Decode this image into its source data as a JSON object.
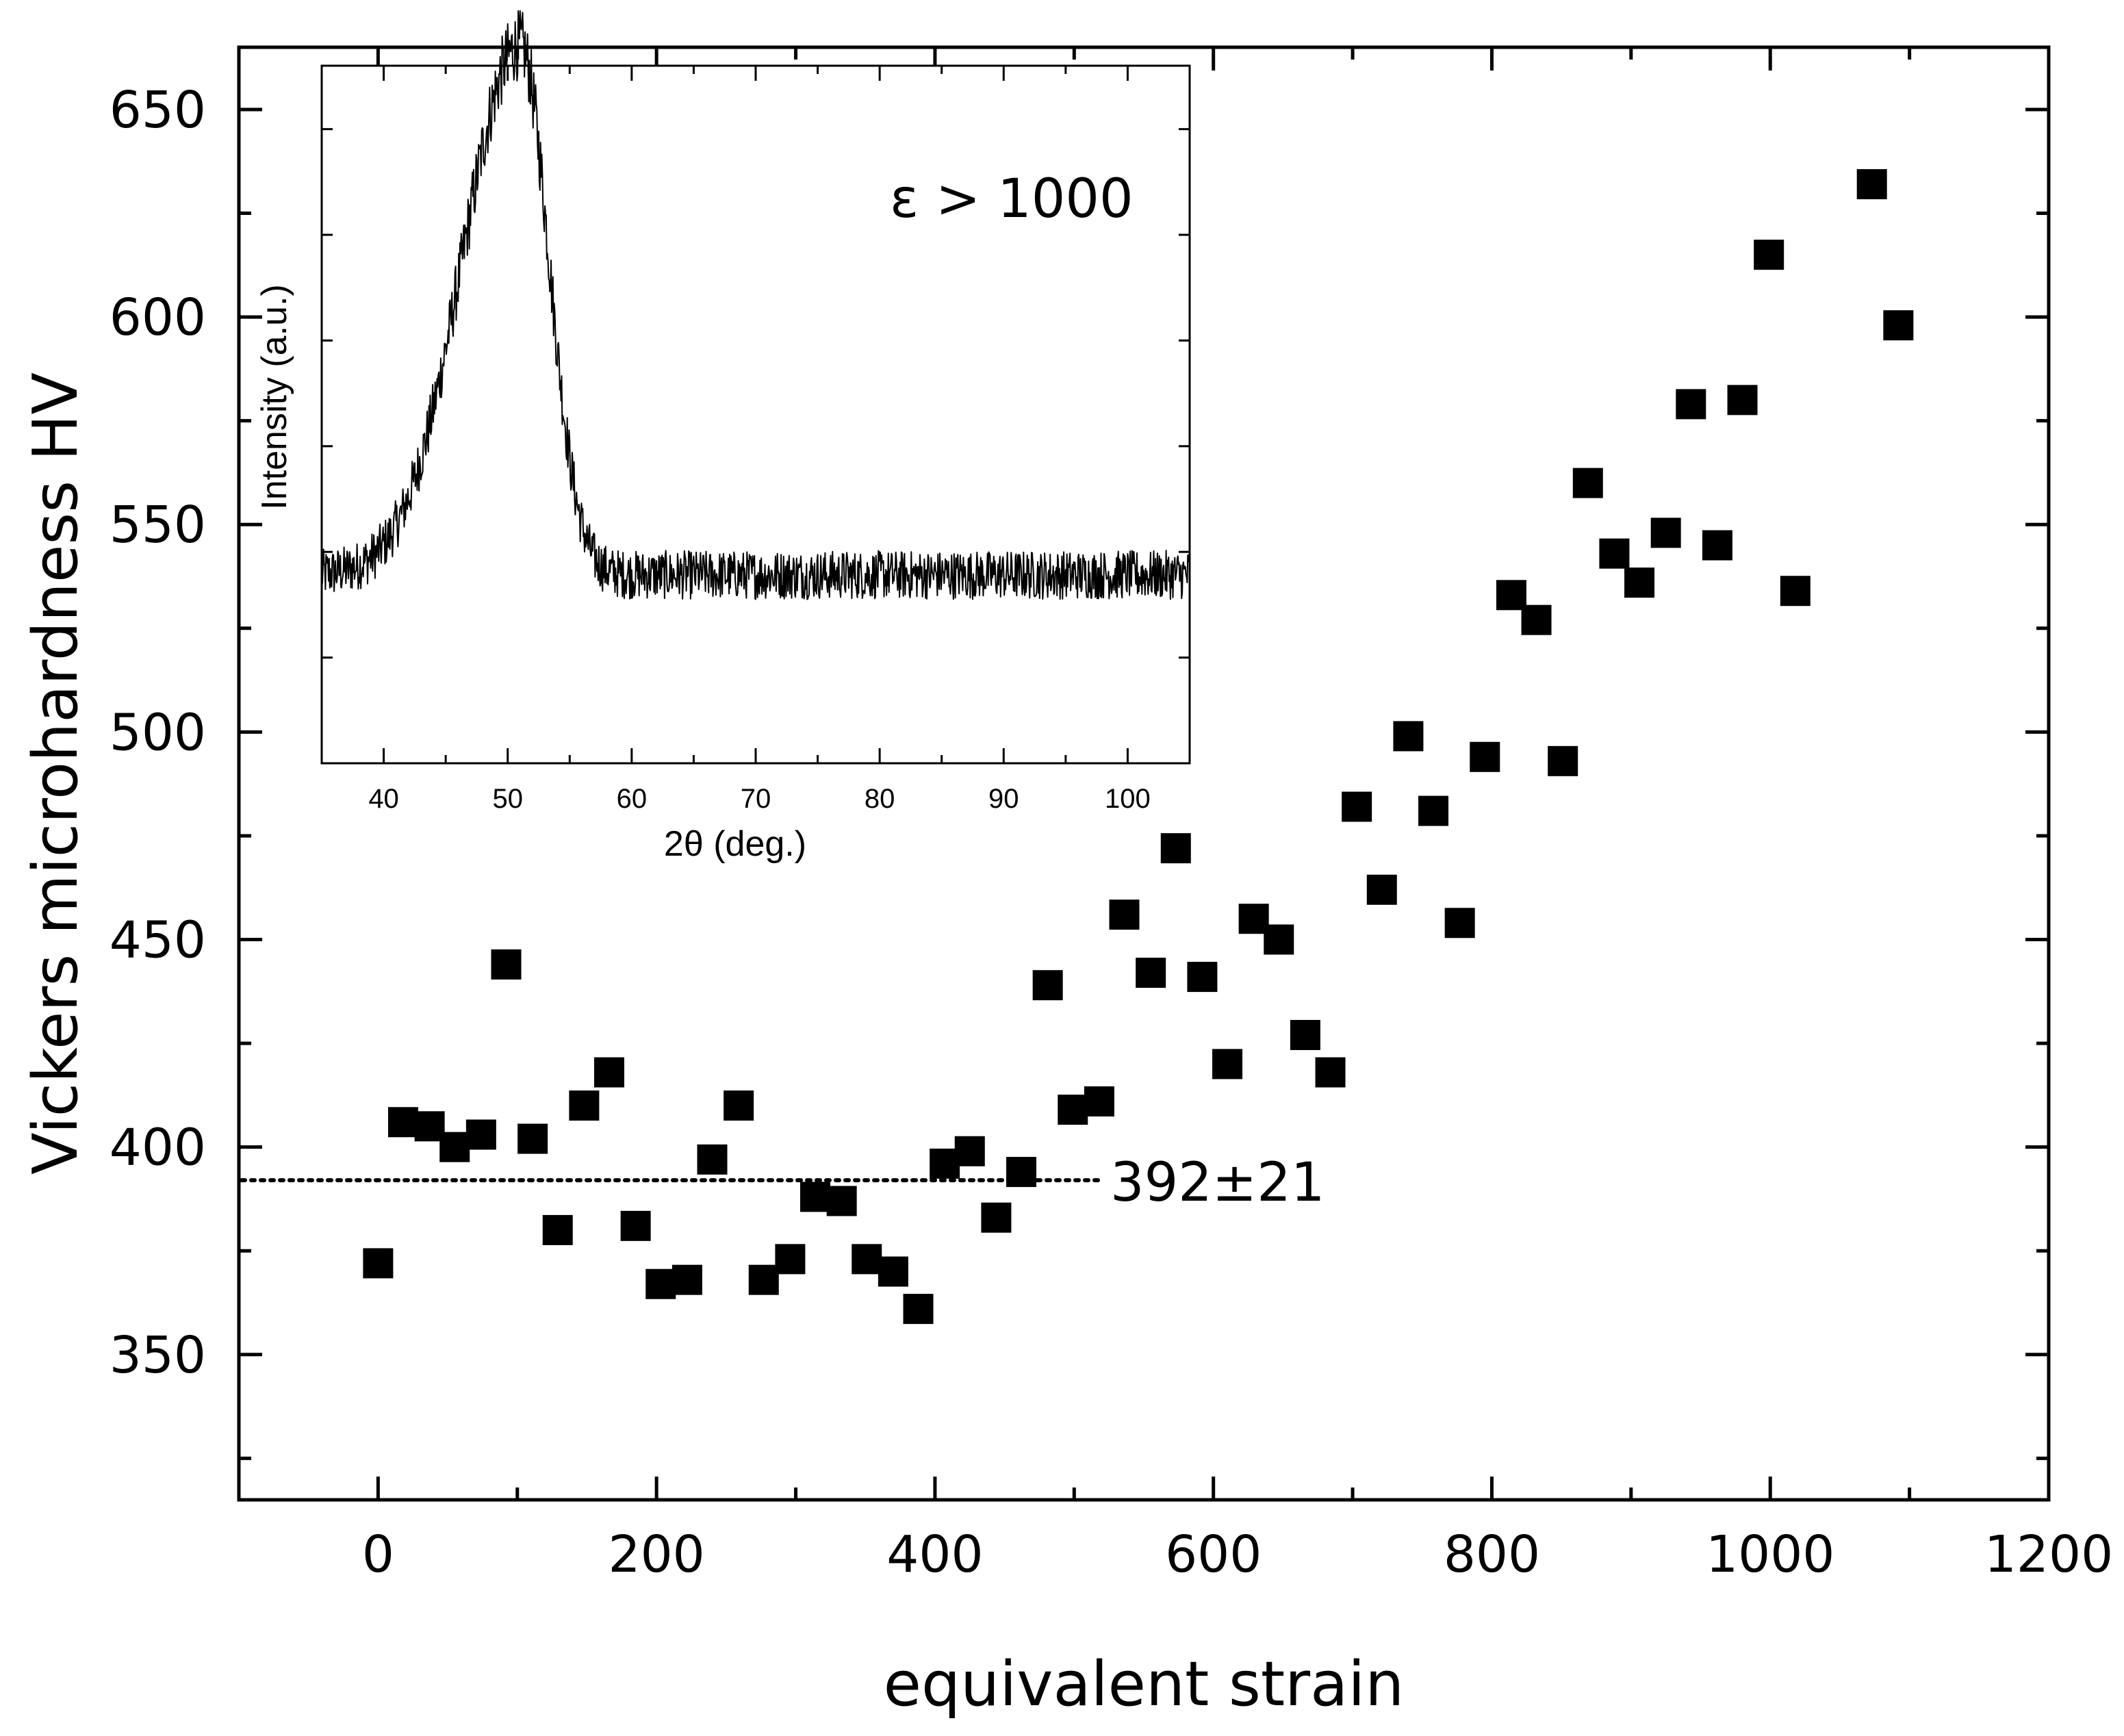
{
  "chart_data": {
    "type": "scatter",
    "xlabel": "equivalent strain",
    "ylabel": "Vickers microhardness HV",
    "xlim": [
      -100,
      1200
    ],
    "ylim": [
      315,
      665
    ],
    "x_ticks": [
      0,
      200,
      400,
      600,
      800,
      1000,
      1200
    ],
    "y_ticks": [
      350,
      400,
      450,
      500,
      550,
      600,
      650
    ],
    "marker": "square",
    "marker_color": "#000000",
    "series": [
      {
        "name": "microhardness",
        "points": [
          [
            0,
            372
          ],
          [
            18,
            406
          ],
          [
            37,
            405
          ],
          [
            55,
            400
          ],
          [
            74,
            403
          ],
          [
            92,
            444
          ],
          [
            111,
            402
          ],
          [
            129,
            380
          ],
          [
            148,
            410
          ],
          [
            166,
            418
          ],
          [
            185,
            381
          ],
          [
            203,
            367
          ],
          [
            222,
            368
          ],
          [
            240,
            397
          ],
          [
            259,
            410
          ],
          [
            277,
            368
          ],
          [
            296,
            373
          ],
          [
            314,
            388
          ],
          [
            333,
            387
          ],
          [
            351,
            373
          ],
          [
            370,
            370
          ],
          [
            388,
            361
          ],
          [
            407,
            396
          ],
          [
            425,
            399
          ],
          [
            444,
            383
          ],
          [
            462,
            394
          ],
          [
            481,
            439
          ],
          [
            499,
            409
          ],
          [
            518,
            411
          ],
          [
            536,
            456
          ],
          [
            555,
            442
          ],
          [
            573,
            472
          ],
          [
            592,
            441
          ],
          [
            610,
            420
          ],
          [
            629,
            455
          ],
          [
            647,
            450
          ],
          [
            666,
            427
          ],
          [
            684,
            418
          ],
          [
            703,
            482
          ],
          [
            721,
            462
          ],
          [
            740,
            499
          ],
          [
            758,
            481
          ],
          [
            777,
            454
          ],
          [
            795,
            494
          ],
          [
            814,
            533
          ],
          [
            832,
            527
          ],
          [
            851,
            493
          ],
          [
            869,
            560
          ],
          [
            888,
            543
          ],
          [
            906,
            536
          ],
          [
            925,
            548
          ],
          [
            943,
            579
          ],
          [
            962,
            545
          ],
          [
            980,
            580
          ],
          [
            999,
            615
          ],
          [
            1018,
            534
          ],
          [
            1073,
            632
          ],
          [
            1092,
            598
          ]
        ]
      }
    ],
    "reference_line": {
      "value": 392,
      "x_range": [
        -100,
        520
      ],
      "style": "dotted",
      "label": "392±21"
    },
    "inset": {
      "type": "line",
      "annotation": "ε > 1000",
      "xlabel": "2θ (deg.)",
      "ylabel": "Intensity (a.u.)",
      "xlim": [
        35,
        105
      ],
      "x_ticks": [
        40,
        50,
        60,
        70,
        80,
        90,
        100
      ],
      "baseline_level": 0.27,
      "peak_center": 51,
      "peak_height": 0.76,
      "peak_width_left": 4.6,
      "peak_width_right": 2.3,
      "noise_amplitude": 0.035,
      "sample_step": 0.05
    }
  }
}
